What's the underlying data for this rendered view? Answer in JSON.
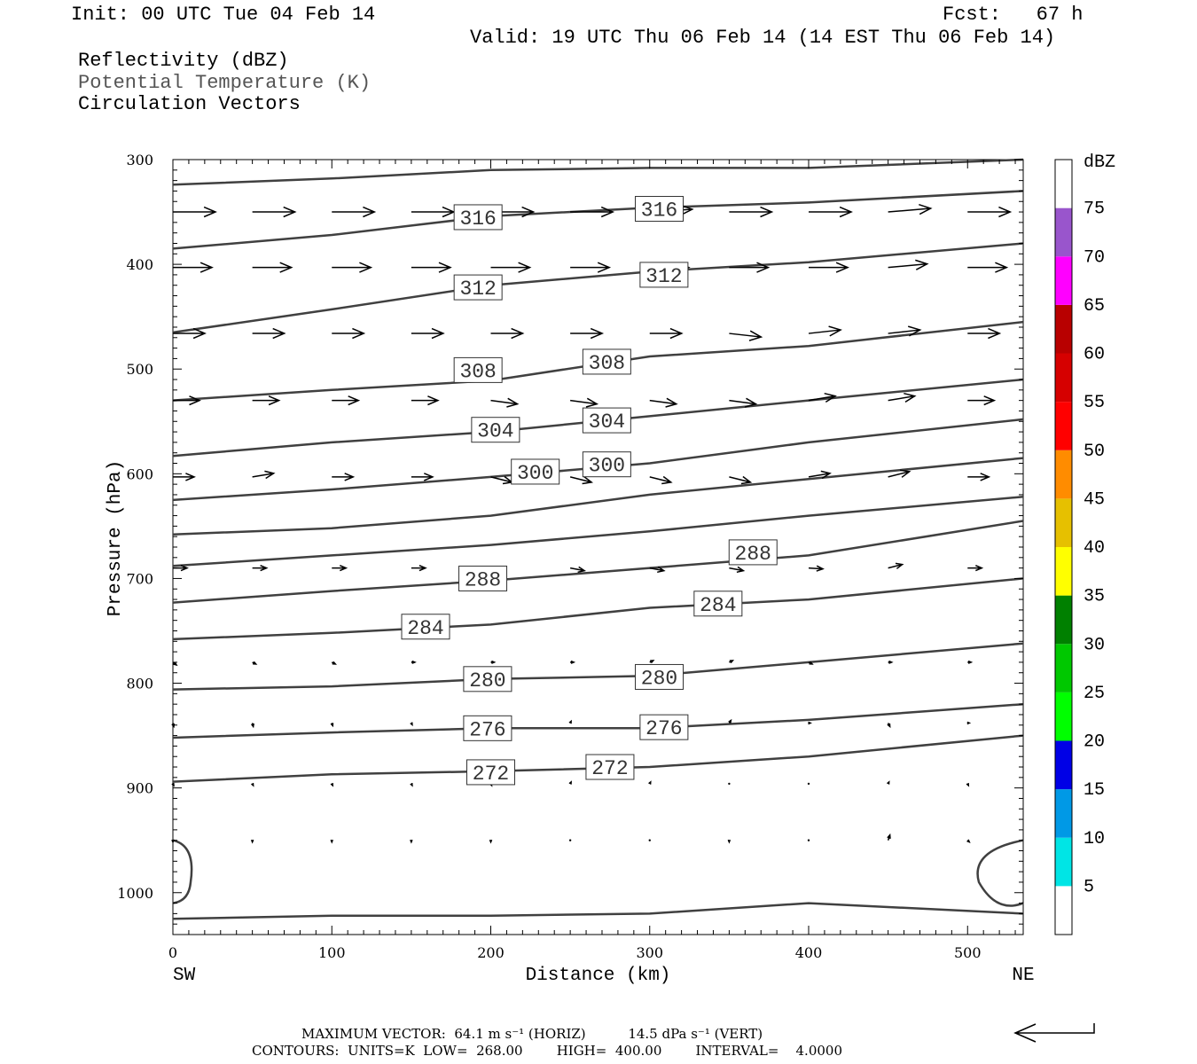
{
  "header": {
    "init": "Init: 00 UTC Tue 04 Feb 14",
    "fcst": "Fcst:   67 h",
    "valid": "Valid: 19 UTC Thu 06 Feb 14 (14 EST Thu 06 Feb 14)",
    "field1": "Reflectivity (dBZ)",
    "field2": "Potential Temperature (K)",
    "field3": "Circulation Vectors"
  },
  "footer": {
    "max_vector": "MAXIMUM VECTOR:  64.1 m s⁻¹ (HORIZ)          14.5 dPa s⁻¹ (VERT)",
    "contours": "CONTOURS:  UNITS=K  LOW=  268.00        HIGH=  400.00        INTERVAL=    4.0000"
  },
  "colors": {
    "contour": "#404040",
    "scale": [
      "#ffffff",
      "#00e5e5",
      "#0099e6",
      "#0000e6",
      "#00ff00",
      "#00c800",
      "#008000",
      "#ffff00",
      "#e6c000",
      "#ff8c00",
      "#ff0000",
      "#d60000",
      "#b80000",
      "#ff00ff",
      "#9955cc",
      "#ffffff"
    ]
  },
  "chart_data": {
    "type": "cross-section",
    "xlabel": "Distance (km)",
    "ylabel": "Pressure (hPa)",
    "xlim": [
      0,
      535
    ],
    "ylim": [
      1040,
      300
    ],
    "x_ticks": [
      0,
      100,
      200,
      300,
      400,
      500
    ],
    "y_ticks": [
      300,
      400,
      500,
      600,
      700,
      800,
      900,
      1000
    ],
    "x_end_labels": [
      "SW",
      "NE"
    ],
    "colorbar": {
      "title": "dBZ",
      "levels": [
        5,
        10,
        15,
        20,
        25,
        30,
        35,
        40,
        45,
        50,
        55,
        60,
        65,
        70,
        75
      ]
    },
    "contour_labels": [
      {
        "value": "316",
        "x": 192,
        "p": 355
      },
      {
        "value": "316",
        "x": 306,
        "p": 347
      },
      {
        "value": "312",
        "x": 192,
        "p": 422
      },
      {
        "value": "312",
        "x": 309,
        "p": 410
      },
      {
        "value": "308",
        "x": 192,
        "p": 501
      },
      {
        "value": "308",
        "x": 273,
        "p": 493
      },
      {
        "value": "304",
        "x": 203,
        "p": 558
      },
      {
        "value": "304",
        "x": 273,
        "p": 549
      },
      {
        "value": "300",
        "x": 228,
        "p": 598
      },
      {
        "value": "300",
        "x": 273,
        "p": 591
      },
      {
        "value": "288",
        "x": 195,
        "p": 700
      },
      {
        "value": "288",
        "x": 365,
        "p": 675
      },
      {
        "value": "284",
        "x": 159,
        "p": 746
      },
      {
        "value": "284",
        "x": 343,
        "p": 724
      },
      {
        "value": "280",
        "x": 198,
        "p": 796
      },
      {
        "value": "280",
        "x": 306,
        "p": 794
      },
      {
        "value": "276",
        "x": 198,
        "p": 843
      },
      {
        "value": "276",
        "x": 309,
        "p": 842
      },
      {
        "value": "272",
        "x": 200,
        "p": 885
      },
      {
        "value": "272",
        "x": 275,
        "p": 880
      }
    ],
    "contours": [
      {
        "x": [
          0,
          100,
          200,
          300,
          400,
          535
        ],
        "p": [
          324,
          318,
          310,
          308,
          308,
          300
        ]
      },
      {
        "x": [
          0,
          100,
          200,
          300,
          400,
          535
        ],
        "p": [
          385,
          372,
          354,
          346,
          341,
          330
        ]
      },
      {
        "x": [
          0,
          100,
          200,
          300,
          400,
          535
        ],
        "p": [
          465,
          443,
          420,
          407,
          398,
          380
        ]
      },
      {
        "x": [
          0,
          100,
          200,
          300,
          400,
          535
        ],
        "p": [
          530,
          520,
          511,
          488,
          478,
          455
        ]
      },
      {
        "x": [
          0,
          100,
          200,
          300,
          400,
          535
        ],
        "p": [
          583,
          570,
          560,
          545,
          530,
          510
        ]
      },
      {
        "x": [
          0,
          100,
          200,
          300,
          400,
          535
        ],
        "p": [
          625,
          615,
          603,
          590,
          570,
          548
        ]
      },
      {
        "x": [
          0,
          100,
          200,
          300,
          400,
          535
        ],
        "p": [
          658,
          652,
          640,
          620,
          605,
          585
        ]
      },
      {
        "x": [
          0,
          100,
          200,
          300,
          400,
          535
        ],
        "p": [
          688,
          678,
          668,
          655,
          640,
          622
        ]
      },
      {
        "x": [
          0,
          100,
          200,
          300,
          400,
          535
        ],
        "p": [
          723,
          712,
          702,
          690,
          678,
          645
        ]
      },
      {
        "x": [
          0,
          100,
          200,
          300,
          400,
          535
        ],
        "p": [
          758,
          752,
          744,
          728,
          720,
          700
        ]
      },
      {
        "x": [
          0,
          100,
          200,
          300,
          400,
          535
        ],
        "p": [
          806,
          803,
          796,
          793,
          780,
          762
        ]
      },
      {
        "x": [
          0,
          100,
          200,
          300,
          400,
          535
        ],
        "p": [
          852,
          847,
          843,
          843,
          835,
          820
        ]
      },
      {
        "x": [
          0,
          100,
          200,
          300,
          400,
          535
        ],
        "p": [
          894,
          887,
          884,
          880,
          870,
          850
        ]
      },
      {
        "x": [
          0,
          100,
          200,
          300,
          400,
          535
        ],
        "p": [
          1025,
          1022,
          1022,
          1020,
          1010,
          1020
        ]
      }
    ],
    "vectors": [
      {
        "p": 350,
        "x": [
          0,
          50,
          100,
          150,
          200,
          250,
          300,
          350,
          400,
          450,
          500
        ],
        "dx": [
          48,
          48,
          48,
          48,
          48,
          48,
          48,
          48,
          48,
          48,
          48
        ],
        "dy": [
          0,
          0,
          0,
          0,
          0,
          0,
          -3,
          0,
          0,
          -4,
          0
        ]
      },
      {
        "p": 403,
        "x": [
          0,
          50,
          100,
          150,
          200,
          250,
          300,
          350,
          400,
          450,
          500
        ],
        "dx": [
          44,
          44,
          44,
          44,
          44,
          44,
          44,
          44,
          44,
          44,
          44
        ],
        "dy": [
          0,
          0,
          0,
          0,
          0,
          0,
          0,
          0,
          0,
          -4,
          0
        ]
      },
      {
        "p": 466,
        "x": [
          0,
          50,
          100,
          150,
          200,
          250,
          300,
          350,
          400,
          450,
          500
        ],
        "dx": [
          36,
          36,
          36,
          36,
          36,
          36,
          36,
          36,
          36,
          36,
          36
        ],
        "dy": [
          0,
          0,
          0,
          0,
          0,
          0,
          0,
          4,
          -4,
          -4,
          0
        ]
      },
      {
        "p": 530,
        "x": [
          0,
          50,
          100,
          150,
          200,
          250,
          300,
          350,
          400,
          450,
          500
        ],
        "dx": [
          30,
          30,
          30,
          30,
          30,
          30,
          30,
          30,
          30,
          30,
          30
        ],
        "dy": [
          0,
          0,
          0,
          0,
          4,
          4,
          4,
          4,
          -5,
          -5,
          0
        ]
      },
      {
        "p": 603,
        "x": [
          0,
          50,
          100,
          150,
          200,
          250,
          300,
          350,
          400,
          450,
          500
        ],
        "dx": [
          24,
          24,
          24,
          24,
          24,
          24,
          24,
          24,
          24,
          24,
          24
        ],
        "dy": [
          0,
          -4,
          0,
          0,
          6,
          6,
          6,
          6,
          -4,
          -6,
          0
        ]
      },
      {
        "p": 690,
        "x": [
          0,
          50,
          100,
          150,
          200,
          250,
          300,
          350,
          400,
          450,
          500
        ],
        "dx": [
          16,
          16,
          16,
          16,
          16,
          16,
          16,
          16,
          16,
          16,
          16
        ],
        "dy": [
          0,
          0,
          0,
          0,
          2,
          3,
          3,
          3,
          1,
          -4,
          0
        ]
      },
      {
        "p": 780,
        "x": [
          0,
          50,
          100,
          150,
          200,
          250,
          300,
          350,
          400,
          450,
          500
        ],
        "dx": [
          4,
          4,
          4,
          4,
          4,
          4,
          4,
          4,
          4,
          4,
          4
        ],
        "dy": [
          3,
          2,
          2,
          0,
          0,
          0,
          -2,
          -2,
          2,
          0,
          0
        ]
      },
      {
        "p": 838,
        "x": [
          0,
          50,
          100,
          150,
          200,
          250,
          300,
          350,
          400,
          450,
          500
        ],
        "dx": [
          1,
          1,
          1,
          1,
          1,
          1,
          1,
          2,
          2,
          2,
          2
        ],
        "dy": [
          4,
          4,
          3,
          2,
          0,
          -2,
          0,
          -3,
          0,
          4,
          0
        ]
      },
      {
        "p": 896,
        "x": [
          0,
          50,
          100,
          150,
          200,
          250,
          300,
          350,
          400,
          450,
          500
        ],
        "dx": [
          1,
          1,
          1,
          1,
          1,
          1,
          1,
          1,
          1,
          1,
          1
        ],
        "dy": [
          2,
          2,
          2,
          2,
          2,
          -2,
          -2,
          0,
          0,
          -2,
          2
        ]
      },
      {
        "p": 950,
        "x": [
          0,
          50,
          100,
          150,
          200,
          250,
          300,
          350,
          400,
          450,
          500
        ],
        "dx": [
          0,
          0,
          0,
          0,
          0,
          0,
          0,
          0,
          0,
          2,
          2
        ],
        "dy": [
          2,
          2,
          2,
          2,
          2,
          0,
          0,
          2,
          0,
          -6,
          2
        ]
      }
    ]
  }
}
